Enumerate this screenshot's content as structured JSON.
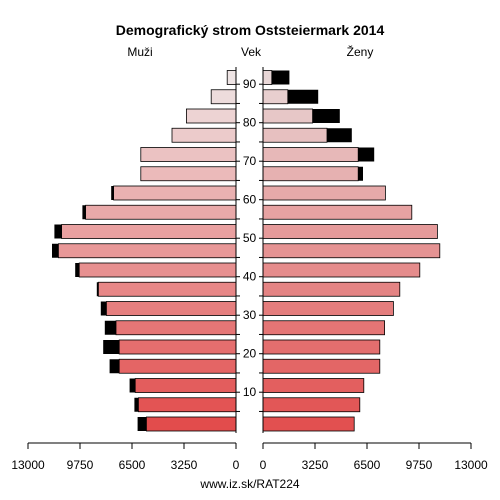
{
  "chart_data": {
    "type": "population_pyramid",
    "title": "Demografický strom Oststeiermark 2014",
    "left_label": "Muži",
    "center_label": "Vek",
    "right_label": "Ženy",
    "footer": "www.iz.sk/RAT224",
    "xlim": [
      0,
      13000
    ],
    "x_ticks": [
      13000,
      9750,
      6500,
      3250,
      0
    ],
    "x_tick_labels_left": [
      "13000",
      "9750",
      "6500",
      "3250",
      "0"
    ],
    "x_tick_labels_right": [
      "0",
      "3250",
      "6500",
      "9750",
      "13000"
    ],
    "age_ticks": [
      10,
      20,
      30,
      40,
      50,
      60,
      70,
      80,
      90
    ],
    "age_groups": [
      {
        "age": 2,
        "male": 5600,
        "male_extra": 550,
        "female": 5700,
        "female_extra": 0
      },
      {
        "age": 7,
        "male": 6100,
        "male_extra": 250,
        "female": 6050,
        "female_extra": 0
      },
      {
        "age": 12,
        "male": 6300,
        "male_extra": 350,
        "female": 6300,
        "female_extra": 0
      },
      {
        "age": 17,
        "male": 7300,
        "male_extra": 600,
        "female": 7300,
        "female_extra": 0
      },
      {
        "age": 22,
        "male": 7300,
        "male_extra": 1000,
        "female": 7300,
        "female_extra": 0
      },
      {
        "age": 27,
        "male": 7500,
        "male_extra": 700,
        "female": 7600,
        "female_extra": 0
      },
      {
        "age": 32,
        "male": 8100,
        "male_extra": 350,
        "female": 8150,
        "female_extra": 0
      },
      {
        "age": 37,
        "male": 8600,
        "male_extra": 100,
        "female": 8550,
        "female_extra": 0
      },
      {
        "age": 42,
        "male": 9800,
        "male_extra": 250,
        "female": 9800,
        "female_extra": 0
      },
      {
        "age": 47,
        "male": 11100,
        "male_extra": 400,
        "female": 11050,
        "female_extra": 0
      },
      {
        "age": 52,
        "male": 10900,
        "male_extra": 450,
        "female": 10900,
        "female_extra": 0
      },
      {
        "age": 57,
        "male": 9400,
        "male_extra": 200,
        "female": 9300,
        "female_extra": 0
      },
      {
        "age": 62,
        "male": 7650,
        "male_extra": 150,
        "female": 7650,
        "female_extra": 0
      },
      {
        "age": 67,
        "male": 5950,
        "male_extra": 0,
        "female": 5950,
        "female_extra": 300
      },
      {
        "age": 72,
        "male": 5950,
        "male_extra": 0,
        "female": 5950,
        "female_extra": 1000
      },
      {
        "age": 77,
        "male": 4000,
        "male_extra": 0,
        "female": 4000,
        "female_extra": 1550
      },
      {
        "age": 82,
        "male": 3100,
        "male_extra": 0,
        "female": 3100,
        "female_extra": 1700
      },
      {
        "age": 87,
        "male": 1550,
        "male_extra": 0,
        "female": 1550,
        "female_extra": 1900
      },
      {
        "age": 92,
        "male": 550,
        "male_extra": 0,
        "female": 550,
        "female_extra": 1100
      }
    ]
  }
}
